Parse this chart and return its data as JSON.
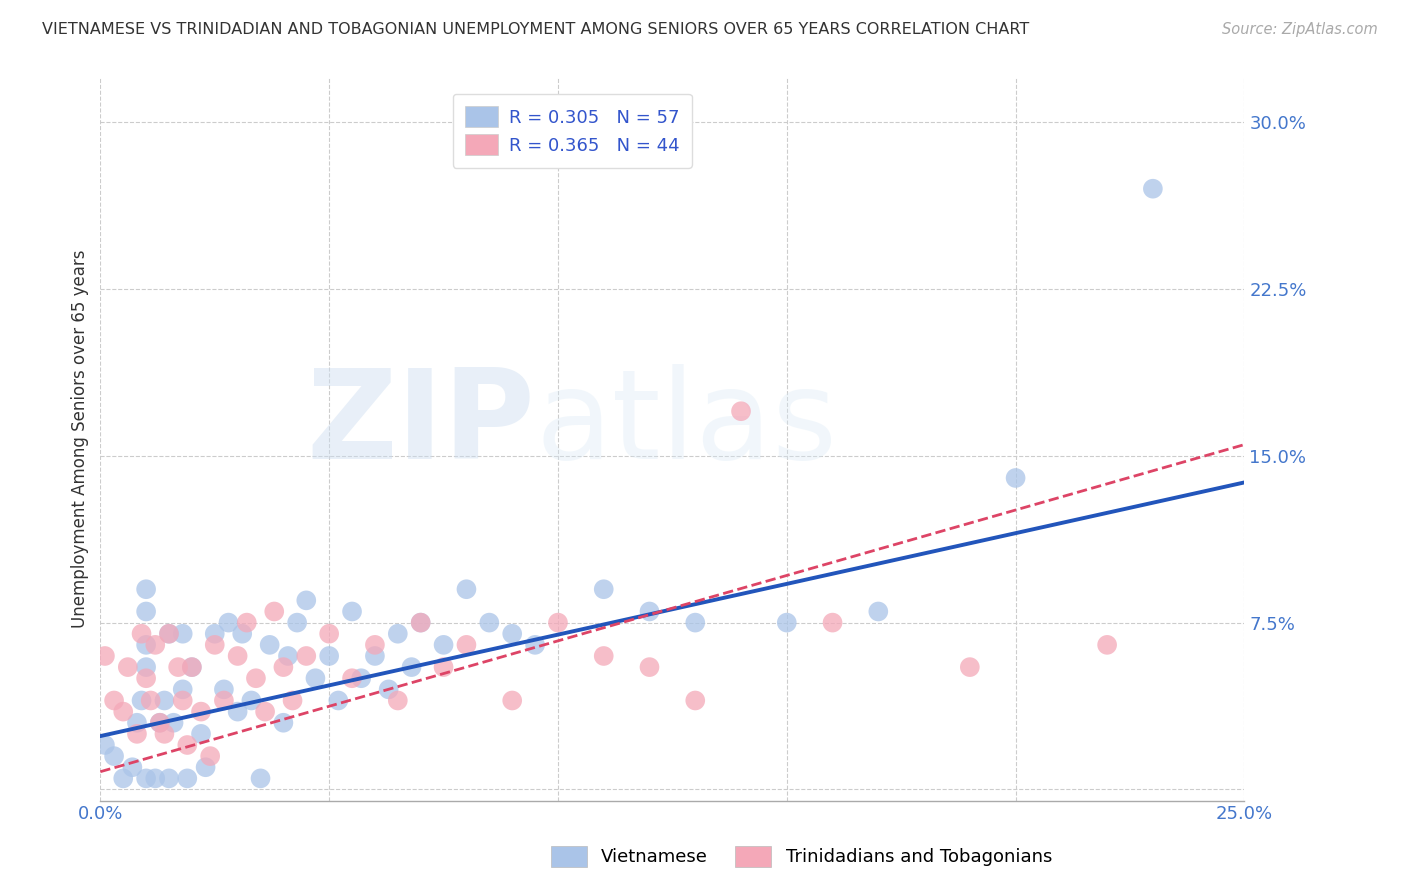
{
  "title": "VIETNAMESE VS TRINIDADIAN AND TOBAGONIAN UNEMPLOYMENT AMONG SENIORS OVER 65 YEARS CORRELATION CHART",
  "source": "Source: ZipAtlas.com",
  "ylabel": "Unemployment Among Seniors over 65 years",
  "xlim": [
    0.0,
    0.25
  ],
  "ylim": [
    -0.005,
    0.32
  ],
  "xticks": [
    0.0,
    0.05,
    0.1,
    0.15,
    0.2,
    0.25
  ],
  "yticks_right": [
    0.0,
    0.075,
    0.15,
    0.225,
    0.3
  ],
  "ytick_labels_right": [
    "",
    "7.5%",
    "15.0%",
    "22.5%",
    "30.0%"
  ],
  "xtick_labels": [
    "0.0%",
    "",
    "",
    "",
    "",
    "25.0%"
  ],
  "background_color": "#ffffff",
  "grid_color": "#cccccc",
  "watermark_zip": "ZIP",
  "watermark_atlas": "atlas",
  "viet_color": "#aac4e8",
  "trin_color": "#f4a8b8",
  "viet_line_color": "#2255bb",
  "trin_line_color": "#dd4466",
  "trin_line_style": "--",
  "viet_line_style": "-",
  "viet_R": 0.305,
  "viet_N": 57,
  "trin_R": 0.365,
  "trin_N": 44,
  "viet_scatter_x": [
    0.001,
    0.003,
    0.005,
    0.007,
    0.008,
    0.009,
    0.01,
    0.01,
    0.01,
    0.01,
    0.01,
    0.012,
    0.013,
    0.014,
    0.015,
    0.015,
    0.016,
    0.018,
    0.018,
    0.019,
    0.02,
    0.022,
    0.023,
    0.025,
    0.027,
    0.028,
    0.03,
    0.031,
    0.033,
    0.035,
    0.037,
    0.04,
    0.041,
    0.043,
    0.045,
    0.047,
    0.05,
    0.052,
    0.055,
    0.057,
    0.06,
    0.063,
    0.065,
    0.068,
    0.07,
    0.075,
    0.08,
    0.085,
    0.09,
    0.095,
    0.11,
    0.12,
    0.13,
    0.15,
    0.17,
    0.2,
    0.23
  ],
  "viet_scatter_y": [
    0.02,
    0.015,
    0.005,
    0.01,
    0.03,
    0.04,
    0.055,
    0.065,
    0.08,
    0.09,
    0.005,
    0.005,
    0.03,
    0.04,
    0.005,
    0.07,
    0.03,
    0.045,
    0.07,
    0.005,
    0.055,
    0.025,
    0.01,
    0.07,
    0.045,
    0.075,
    0.035,
    0.07,
    0.04,
    0.005,
    0.065,
    0.03,
    0.06,
    0.075,
    0.085,
    0.05,
    0.06,
    0.04,
    0.08,
    0.05,
    0.06,
    0.045,
    0.07,
    0.055,
    0.075,
    0.065,
    0.09,
    0.075,
    0.07,
    0.065,
    0.09,
    0.08,
    0.075,
    0.075,
    0.08,
    0.14,
    0.27
  ],
  "trin_scatter_x": [
    0.001,
    0.003,
    0.005,
    0.006,
    0.008,
    0.009,
    0.01,
    0.011,
    0.012,
    0.013,
    0.014,
    0.015,
    0.017,
    0.018,
    0.019,
    0.02,
    0.022,
    0.024,
    0.025,
    0.027,
    0.03,
    0.032,
    0.034,
    0.036,
    0.038,
    0.04,
    0.042,
    0.045,
    0.05,
    0.055,
    0.06,
    0.065,
    0.07,
    0.075,
    0.08,
    0.09,
    0.1,
    0.11,
    0.12,
    0.13,
    0.14,
    0.16,
    0.19,
    0.22
  ],
  "trin_scatter_y": [
    0.06,
    0.04,
    0.035,
    0.055,
    0.025,
    0.07,
    0.05,
    0.04,
    0.065,
    0.03,
    0.025,
    0.07,
    0.055,
    0.04,
    0.02,
    0.055,
    0.035,
    0.015,
    0.065,
    0.04,
    0.06,
    0.075,
    0.05,
    0.035,
    0.08,
    0.055,
    0.04,
    0.06,
    0.07,
    0.05,
    0.065,
    0.04,
    0.075,
    0.055,
    0.065,
    0.04,
    0.075,
    0.06,
    0.055,
    0.04,
    0.17,
    0.075,
    0.055,
    0.065
  ],
  "viet_line_x0": 0.0,
  "viet_line_y0": 0.024,
  "viet_line_x1": 0.25,
  "viet_line_y1": 0.138,
  "trin_line_x0": 0.0,
  "trin_line_y0": 0.008,
  "trin_line_x1": 0.25,
  "trin_line_y1": 0.155
}
